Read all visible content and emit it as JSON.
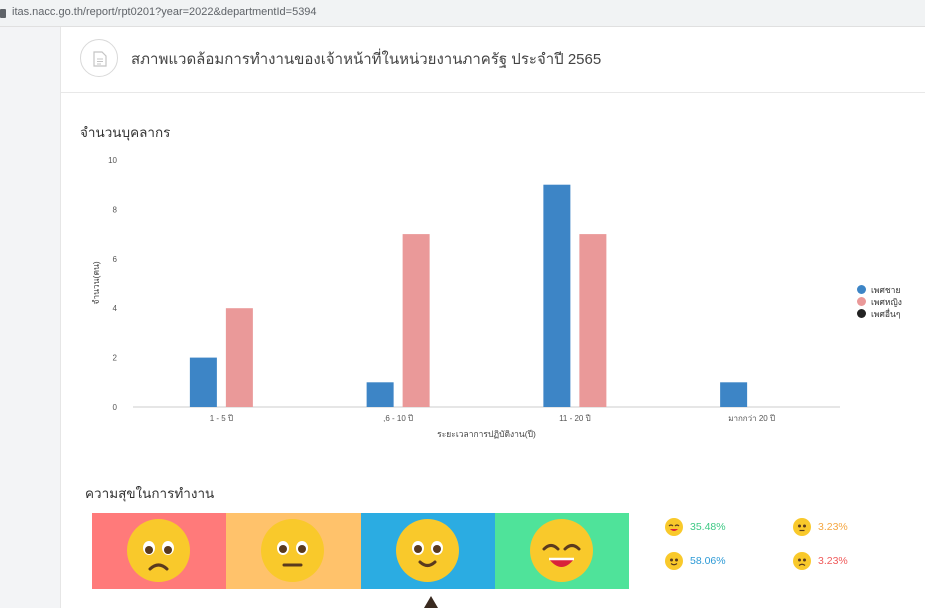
{
  "browser": {
    "url": "itas.nacc.go.th/report/rpt0201?year=2022&departmentId=5394"
  },
  "header": {
    "title": "สภาพแวดล้อมการทำงานของเจ้าหน้าที่ในหน่วยงานภาครัฐ ประจำปี 2565",
    "icon": "document-icon"
  },
  "staff_section": {
    "title": "จำนวนบุคลากร"
  },
  "chart_data": {
    "type": "bar",
    "categories": [
      "1 - 5 ปี",
      ",6 - 10 ปี",
      "11 - 20 ปี",
      "มากกว่า 20 ปี"
    ],
    "series": [
      {
        "name": "เพศชาย",
        "values": [
          2,
          1,
          9,
          1
        ],
        "color": "#3d85c6"
      },
      {
        "name": "เพศหญิง",
        "values": [
          4,
          7,
          7,
          0
        ],
        "color": "#ea9999"
      },
      {
        "name": "เพศอื่นๆ",
        "values": [
          0,
          0,
          0,
          0
        ],
        "color": "#222222"
      }
    ],
    "y_ticks": [
      "0",
      "2",
      "4",
      "6",
      "8",
      "10"
    ],
    "ylim": [
      0,
      10
    ],
    "xlabel": "ระยะเวลาการปฏิบัติงาน(ปี)",
    "ylabel": "จำนวน(คน)",
    "legend_position": "right",
    "grid": false
  },
  "happiness_section": {
    "title": "ความสุขในการทำงาน",
    "segments": [
      {
        "mood": "sad",
        "color": "#ff7a7a"
      },
      {
        "mood": "neutral",
        "color": "#ffc26b"
      },
      {
        "mood": "smile",
        "color": "#2bace2"
      },
      {
        "mood": "very-happy",
        "color": "#4fe39a"
      }
    ],
    "stats": [
      {
        "mood": "very-happy",
        "value": "35.48%",
        "color": "#3ec985"
      },
      {
        "mood": "neutral",
        "value": "3.23%",
        "color": "#f5a742"
      },
      {
        "mood": "smile",
        "value": "58.06%",
        "color": "#2d9ad6"
      },
      {
        "mood": "sad",
        "value": "3.23%",
        "color": "#f05a5a"
      }
    ]
  }
}
